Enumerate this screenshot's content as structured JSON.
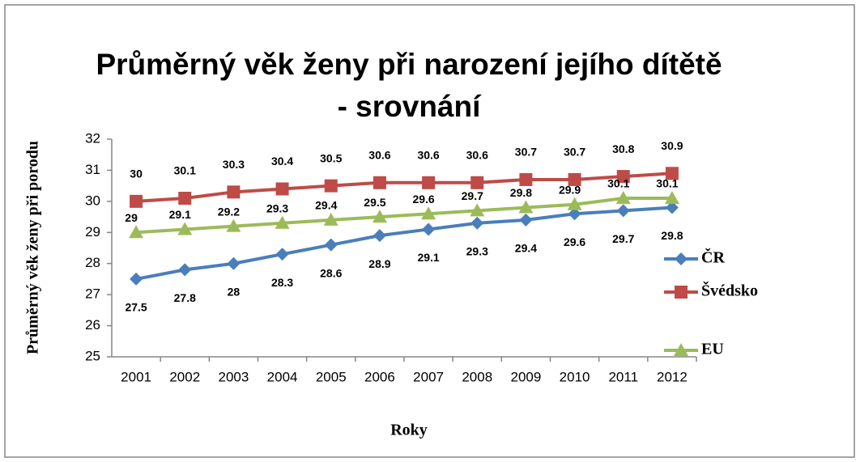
{
  "chart_data": {
    "type": "line",
    "title": [
      "Průměrný věk ženy při narození jejího dítětě",
      "- srovnání"
    ],
    "x_label": "Roky",
    "y_label": "Průměrný věk ženy při porodu",
    "categories": [
      "2001",
      "2002",
      "2003",
      "2004",
      "2005",
      "2006",
      "2007",
      "2008",
      "2009",
      "2010",
      "2011",
      "2012"
    ],
    "series": [
      {
        "name": "ČR",
        "color": "#4a7ebb",
        "marker": "diamond",
        "values": [
          27.5,
          27.8,
          28,
          28.3,
          28.6,
          28.9,
          29.1,
          29.3,
          29.4,
          29.6,
          29.7,
          29.8
        ]
      },
      {
        "name": "Švédsko",
        "color": "#be4b48",
        "marker": "square",
        "values": [
          30,
          30.1,
          30.3,
          30.4,
          30.5,
          30.6,
          30.6,
          30.6,
          30.7,
          30.7,
          30.8,
          30.9
        ]
      },
      {
        "name": "EU",
        "color": "#9bbb59",
        "marker": "triangle",
        "values": [
          29,
          29.1,
          29.2,
          29.3,
          29.4,
          29.5,
          29.6,
          29.7,
          29.8,
          29.9,
          30.1,
          30.1
        ]
      }
    ],
    "ylim": [
      25,
      32
    ],
    "yticks": [
      25,
      26,
      27,
      28,
      29,
      30,
      31,
      32
    ],
    "legend": "right",
    "grid": false
  }
}
